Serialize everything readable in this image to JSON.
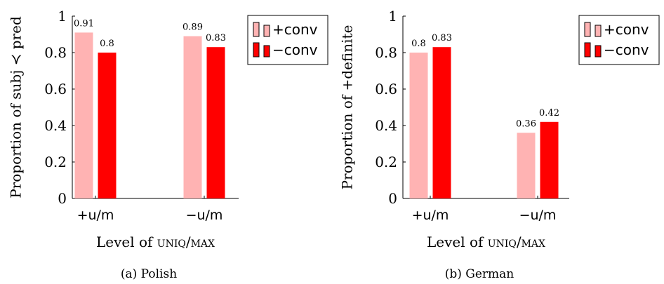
{
  "chart_data": [
    {
      "type": "bar",
      "caption": "(a) Polish",
      "categories": [
        "+u/m",
        "−u/m"
      ],
      "series": [
        {
          "name": "+conv",
          "values": [
            0.91,
            0.89
          ],
          "color": "#ffb3b3"
        },
        {
          "name": "−conv",
          "values": [
            0.8,
            0.83
          ],
          "color": "#ff0000"
        }
      ],
      "data_labels": [
        [
          "0.91",
          "0.89"
        ],
        [
          "0.8",
          "0.83"
        ]
      ],
      "ylabel": "Proportion of subj ≺ pred",
      "xlabel_prefix": "Level of ",
      "xlabel_smallcaps": "uniq/max",
      "ylim": [
        0,
        1
      ],
      "yticks": [
        0,
        0.2,
        0.4,
        0.6,
        0.8,
        1
      ],
      "ytick_labels": [
        "0",
        "0.2",
        "0.4",
        "0.6",
        "0.8",
        "1"
      ],
      "legend_position": "top-right",
      "grid": false
    },
    {
      "type": "bar",
      "caption": "(b) German",
      "categories": [
        "+u/m",
        "−u/m"
      ],
      "series": [
        {
          "name": "+conv",
          "values": [
            0.8,
            0.36
          ],
          "color": "#ffb3b3"
        },
        {
          "name": "−conv",
          "values": [
            0.83,
            0.42
          ],
          "color": "#ff0000"
        }
      ],
      "data_labels": [
        [
          "0.8",
          "0.36"
        ],
        [
          "0.83",
          "0.42"
        ]
      ],
      "ylabel": "Proportion of +definite",
      "xlabel_prefix": "Level of ",
      "xlabel_smallcaps": "uniq/max",
      "ylim": [
        0,
        1
      ],
      "yticks": [
        0,
        0.2,
        0.4,
        0.6,
        0.8,
        1
      ],
      "ytick_labels": [
        "0",
        "0.2",
        "0.4",
        "0.6",
        "0.8",
        "1"
      ],
      "legend_position": "top-right",
      "grid": false
    }
  ]
}
